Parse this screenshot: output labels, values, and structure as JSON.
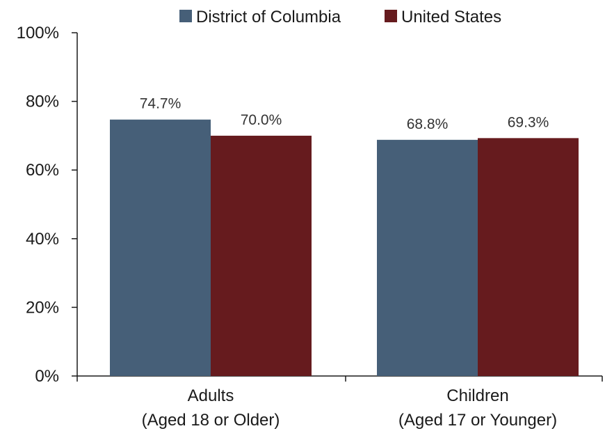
{
  "chart_data": {
    "type": "bar",
    "categories": [
      [
        "Adults",
        "(Aged 18 or Older)"
      ],
      [
        "Children",
        "(Aged 17 or Younger)"
      ]
    ],
    "series": [
      {
        "name": "District of Columbia",
        "values": [
          74.7,
          68.8
        ],
        "labels": [
          "74.7%",
          "68.8%"
        ],
        "color": "#465f78"
      },
      {
        "name": "United States",
        "values": [
          70.0,
          69.3
        ],
        "labels": [
          "70.0%",
          "69.3%"
        ],
        "color": "#661b1e"
      }
    ],
    "ylim": [
      0,
      100
    ],
    "yticks": [
      "0%",
      "20%",
      "40%",
      "60%",
      "80%",
      "100%"
    ],
    "ytick_values": [
      0,
      20,
      40,
      60,
      80,
      100
    ],
    "grid": false,
    "legend_position": "top"
  }
}
